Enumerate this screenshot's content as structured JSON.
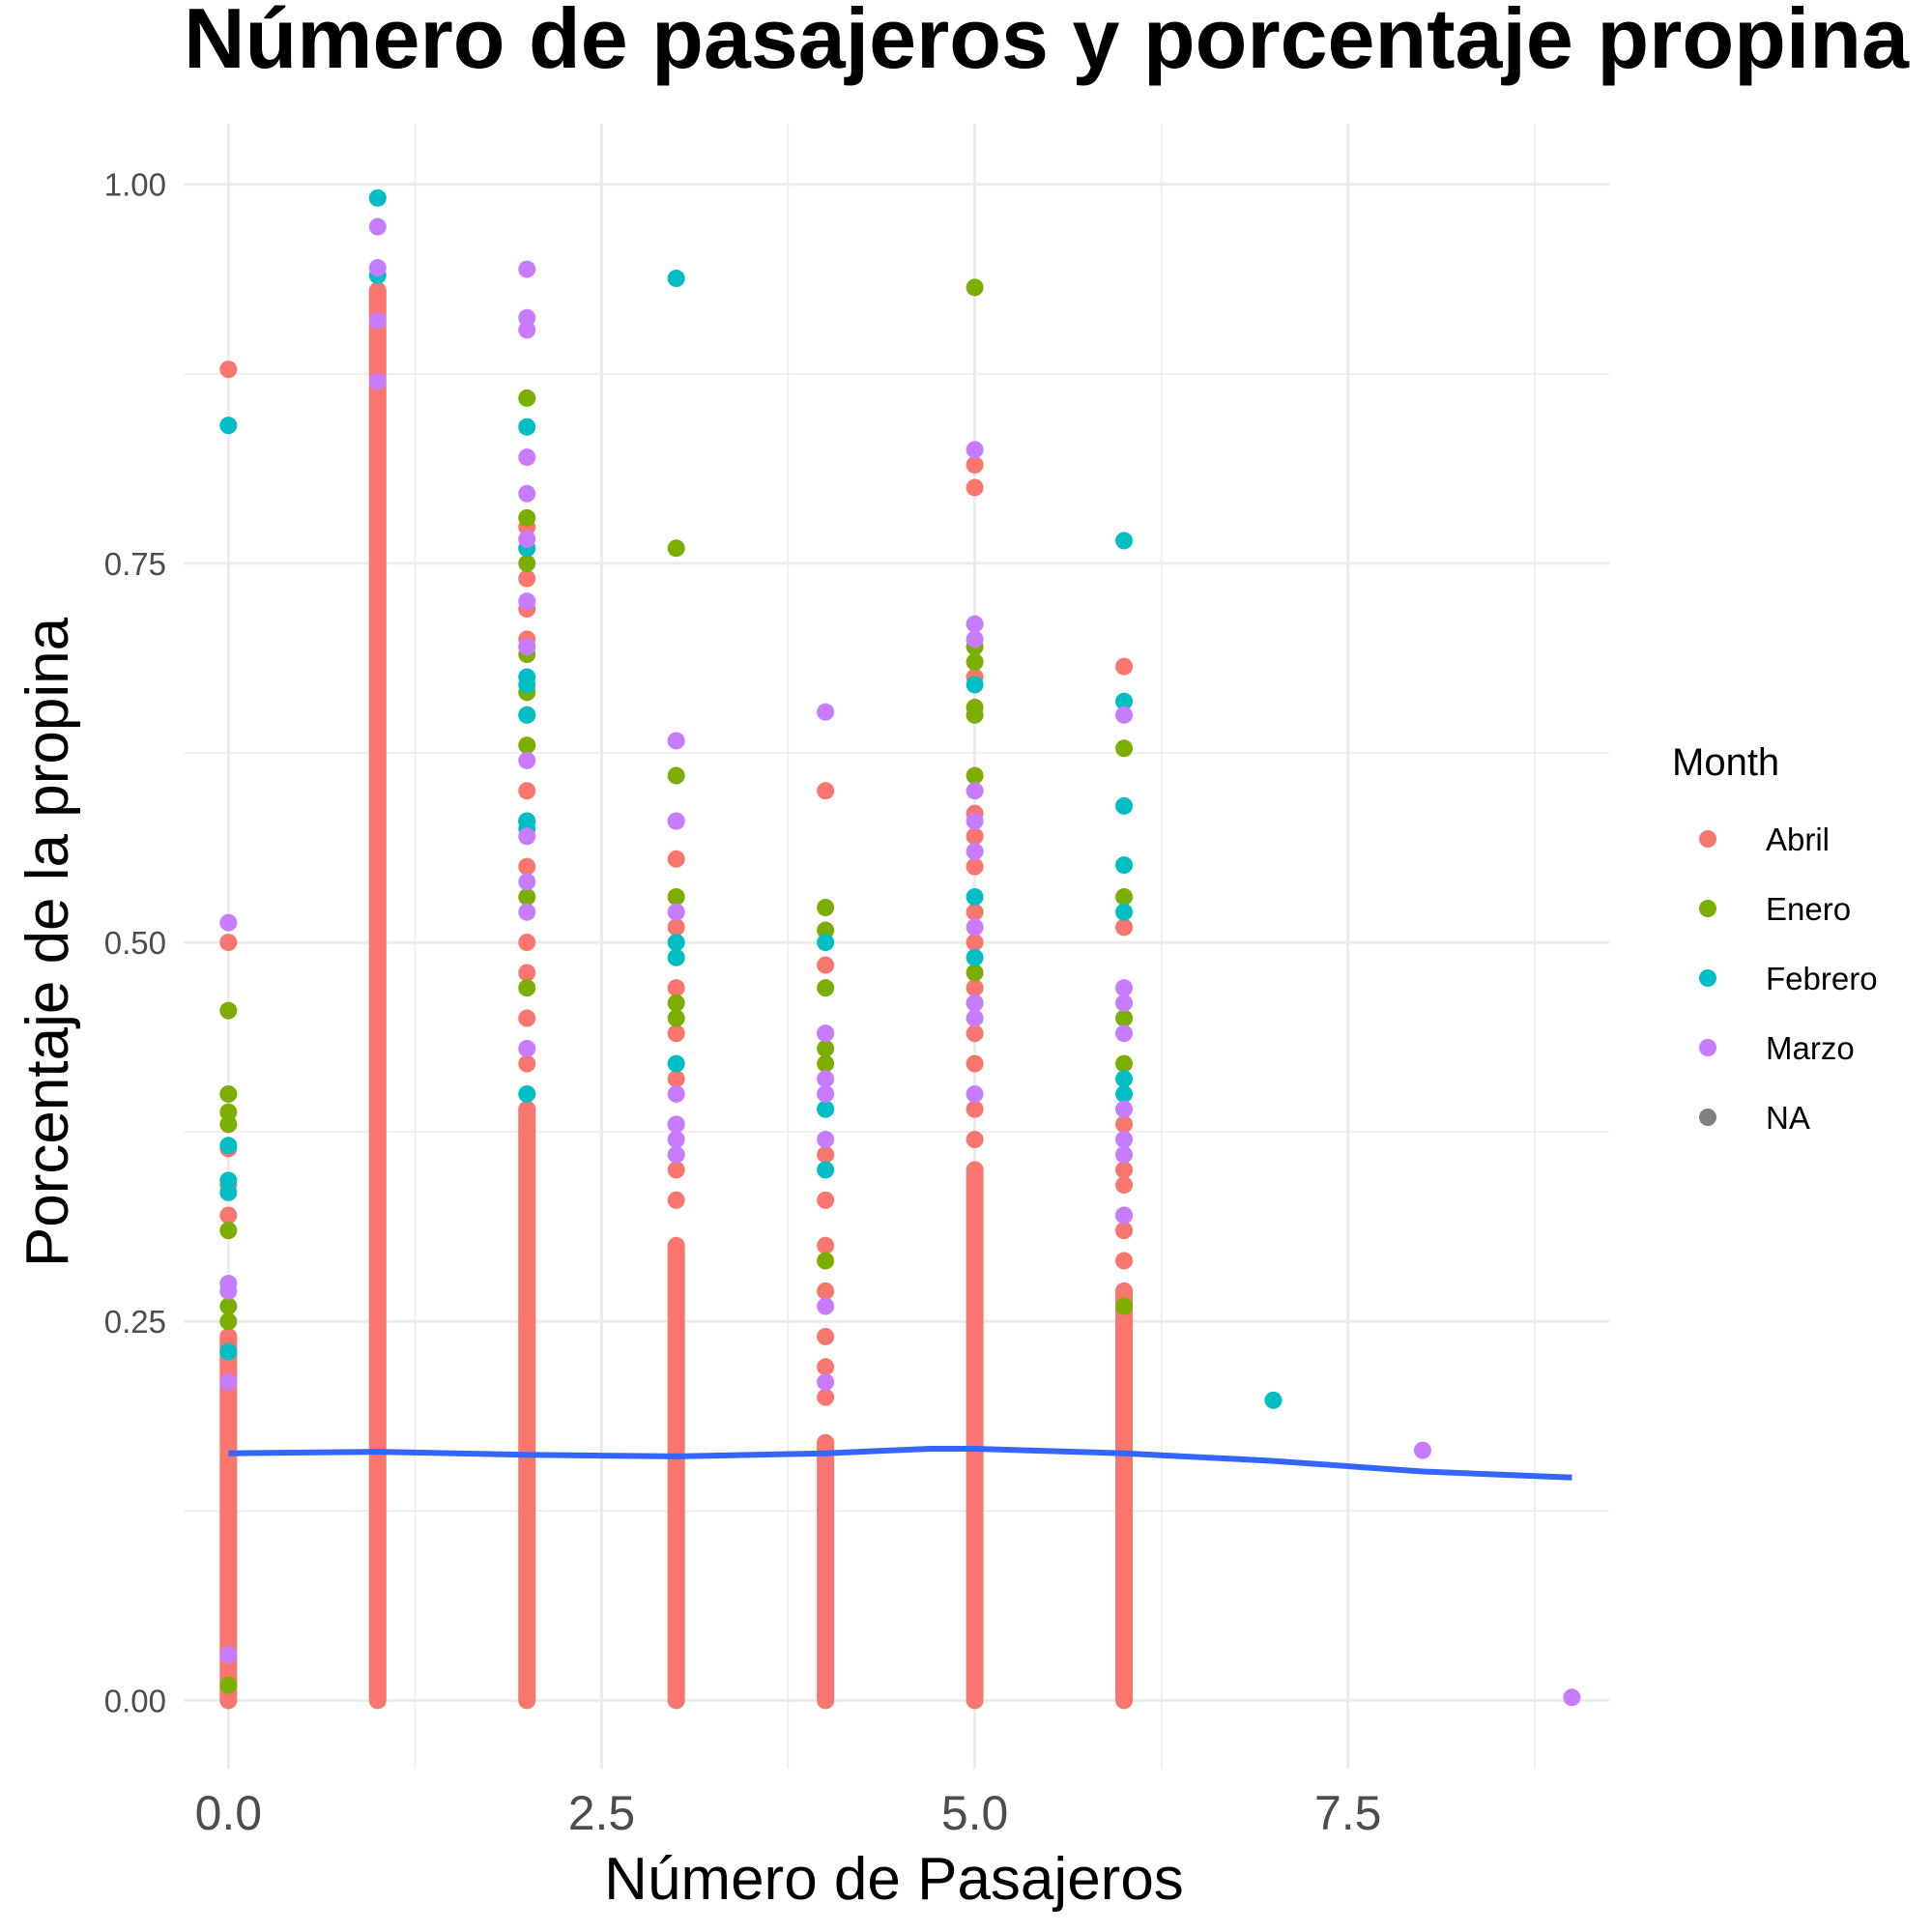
{
  "chart_data": {
    "type": "scatter",
    "title": "Número de pasajeros y porcentaje propina",
    "xlabel": "Número de Pasajeros",
    "ylabel": "Porcentaje de la propina",
    "xlim": [
      -0.3,
      9.25
    ],
    "ylim": [
      -0.045,
      1.04
    ],
    "x_ticks": [
      "0.0",
      "2.5",
      "5.0",
      "7.5"
    ],
    "x_tick_values": [
      0,
      2.5,
      5,
      7.5
    ],
    "y_ticks": [
      "0.00",
      "0.25",
      "0.50",
      "0.75",
      "1.00"
    ],
    "y_tick_values": [
      0,
      0.25,
      0.5,
      0.75,
      1.0
    ],
    "grid": true,
    "legend": {
      "title": "Month",
      "position": "right",
      "entries": [
        {
          "label": "Abril",
          "color": "#F8766D"
        },
        {
          "label": "Enero",
          "color": "#7CAE00"
        },
        {
          "label": "Febrero",
          "color": "#00BFC4"
        },
        {
          "label": "Marzo",
          "color": "#C77CFF"
        },
        {
          "label": "NA",
          "color": "#7F7F7F"
        }
      ]
    },
    "bands": [
      {
        "x": 0,
        "y_min": 0,
        "y_max": 0.24,
        "color": "#F8766D"
      },
      {
        "x": 1,
        "y_min": 0,
        "y_max": 0.93,
        "color": "#F8766D"
      },
      {
        "x": 2,
        "y_min": 0,
        "y_max": 0.39,
        "color": "#F8766D"
      },
      {
        "x": 3,
        "y_min": 0,
        "y_max": 0.3,
        "color": "#F8766D"
      },
      {
        "x": 4,
        "y_min": 0,
        "y_max": 0.17,
        "color": "#F8766D"
      },
      {
        "x": 5,
        "y_min": 0,
        "y_max": 0.35,
        "color": "#F8766D"
      },
      {
        "x": 6,
        "y_min": 0,
        "y_max": 0.27,
        "color": "#F8766D"
      }
    ],
    "series": [
      {
        "name": "Abril",
        "color": "#F8766D",
        "points": [
          [
            0,
            0.878
          ],
          [
            0,
            0.5
          ],
          [
            0,
            0.364
          ],
          [
            0,
            0.34
          ],
          [
            0,
            0.32
          ],
          [
            2,
            0.774
          ],
          [
            2,
            0.76
          ],
          [
            2,
            0.74
          ],
          [
            2,
            0.72
          ],
          [
            2,
            0.7
          ],
          [
            2,
            0.65
          ],
          [
            2,
            0.6
          ],
          [
            2,
            0.58
          ],
          [
            2,
            0.55
          ],
          [
            2,
            0.5
          ],
          [
            2,
            0.48
          ],
          [
            2,
            0.45
          ],
          [
            2,
            0.42
          ],
          [
            3,
            0.58
          ],
          [
            3,
            0.555
          ],
          [
            3,
            0.51
          ],
          [
            3,
            0.47
          ],
          [
            3,
            0.44
          ],
          [
            3,
            0.41
          ],
          [
            3,
            0.38
          ],
          [
            3,
            0.35
          ],
          [
            3,
            0.33
          ],
          [
            4,
            0.6
          ],
          [
            4,
            0.485
          ],
          [
            4,
            0.44
          ],
          [
            4,
            0.36
          ],
          [
            4,
            0.33
          ],
          [
            4,
            0.3
          ],
          [
            4,
            0.27
          ],
          [
            4,
            0.24
          ],
          [
            4,
            0.22
          ],
          [
            4,
            0.2
          ],
          [
            5,
            0.815
          ],
          [
            5,
            0.8
          ],
          [
            5,
            0.675
          ],
          [
            5,
            0.585
          ],
          [
            5,
            0.57
          ],
          [
            5,
            0.55
          ],
          [
            5,
            0.52
          ],
          [
            5,
            0.5
          ],
          [
            5,
            0.47
          ],
          [
            5,
            0.44
          ],
          [
            5,
            0.42
          ],
          [
            5,
            0.39
          ],
          [
            5,
            0.37
          ],
          [
            6,
            0.682
          ],
          [
            6,
            0.51
          ],
          [
            6,
            0.38
          ],
          [
            6,
            0.35
          ],
          [
            6,
            0.34
          ],
          [
            6,
            0.32
          ],
          [
            6,
            0.31
          ],
          [
            6,
            0.29
          ]
        ]
      },
      {
        "name": "Enero",
        "color": "#7CAE00",
        "points": [
          [
            0,
            0.455
          ],
          [
            0,
            0.4
          ],
          [
            0,
            0.388
          ],
          [
            0,
            0.38
          ],
          [
            0,
            0.31
          ],
          [
            0,
            0.26
          ],
          [
            0,
            0.25
          ],
          [
            0,
            0.01
          ],
          [
            2,
            0.859
          ],
          [
            2,
            0.78
          ],
          [
            2,
            0.75
          ],
          [
            2,
            0.69
          ],
          [
            2,
            0.665
          ],
          [
            2,
            0.63
          ],
          [
            2,
            0.58
          ],
          [
            2,
            0.53
          ],
          [
            2,
            0.47
          ],
          [
            3,
            0.76
          ],
          [
            3,
            0.61
          ],
          [
            3,
            0.53
          ],
          [
            3,
            0.46
          ],
          [
            3,
            0.45
          ],
          [
            4,
            0.523
          ],
          [
            4,
            0.508
          ],
          [
            4,
            0.47
          ],
          [
            4,
            0.43
          ],
          [
            4,
            0.42
          ],
          [
            4,
            0.39
          ],
          [
            4,
            0.29
          ],
          [
            5,
            0.932
          ],
          [
            5,
            0.695
          ],
          [
            5,
            0.685
          ],
          [
            5,
            0.655
          ],
          [
            5,
            0.65
          ],
          [
            5,
            0.61
          ],
          [
            5,
            0.48
          ],
          [
            6,
            0.628
          ],
          [
            6,
            0.53
          ],
          [
            6,
            0.45
          ],
          [
            6,
            0.42
          ],
          [
            6,
            0.26
          ]
        ]
      },
      {
        "name": "Febrero",
        "color": "#00BFC4",
        "points": [
          [
            0,
            0.841
          ],
          [
            0,
            0.366
          ],
          [
            0,
            0.343
          ],
          [
            0,
            0.335
          ],
          [
            0,
            0.23
          ],
          [
            1,
            0.991
          ],
          [
            1,
            0.94
          ],
          [
            2,
            0.84
          ],
          [
            2,
            0.76
          ],
          [
            2,
            0.675
          ],
          [
            2,
            0.67
          ],
          [
            2,
            0.65
          ],
          [
            2,
            0.58
          ],
          [
            2,
            0.575
          ],
          [
            2,
            0.4
          ],
          [
            3,
            0.938
          ],
          [
            3,
            0.5
          ],
          [
            3,
            0.49
          ],
          [
            3,
            0.42
          ],
          [
            4,
            0.5
          ],
          [
            4,
            0.39
          ],
          [
            4,
            0.35
          ],
          [
            5,
            0.67
          ],
          [
            5,
            0.53
          ],
          [
            5,
            0.49
          ],
          [
            5,
            0.46
          ],
          [
            6,
            0.765
          ],
          [
            6,
            0.659
          ],
          [
            6,
            0.59
          ],
          [
            6,
            0.551
          ],
          [
            6,
            0.52
          ],
          [
            6,
            0.41
          ],
          [
            6,
            0.4
          ],
          [
            7,
            0.198
          ]
        ]
      },
      {
        "name": "Marzo",
        "color": "#C77CFF",
        "points": [
          [
            0,
            0.513
          ],
          [
            0,
            0.275
          ],
          [
            0,
            0.27
          ],
          [
            0,
            0.21
          ],
          [
            0,
            0.03
          ],
          [
            1,
            0.972
          ],
          [
            1,
            0.945
          ],
          [
            1,
            0.91
          ],
          [
            1,
            0.87
          ],
          [
            2,
            0.944
          ],
          [
            2,
            0.912
          ],
          [
            2,
            0.904
          ],
          [
            2,
            0.82
          ],
          [
            2,
            0.796
          ],
          [
            2,
            0.766
          ],
          [
            2,
            0.725
          ],
          [
            2,
            0.695
          ],
          [
            2,
            0.62
          ],
          [
            2,
            0.57
          ],
          [
            2,
            0.54
          ],
          [
            2,
            0.52
          ],
          [
            2,
            0.43
          ],
          [
            3,
            0.633
          ],
          [
            3,
            0.58
          ],
          [
            3,
            0.52
          ],
          [
            3,
            0.4
          ],
          [
            3,
            0.38
          ],
          [
            3,
            0.37
          ],
          [
            3,
            0.36
          ],
          [
            4,
            0.652
          ],
          [
            4,
            0.44
          ],
          [
            4,
            0.41
          ],
          [
            4,
            0.4
          ],
          [
            4,
            0.37
          ],
          [
            4,
            0.26
          ],
          [
            4,
            0.21
          ],
          [
            5,
            0.825
          ],
          [
            5,
            0.71
          ],
          [
            5,
            0.7
          ],
          [
            5,
            0.6
          ],
          [
            5,
            0.58
          ],
          [
            5,
            0.56
          ],
          [
            5,
            0.51
          ],
          [
            5,
            0.46
          ],
          [
            5,
            0.45
          ],
          [
            5,
            0.4
          ],
          [
            6,
            0.65
          ],
          [
            6,
            0.47
          ],
          [
            6,
            0.46
          ],
          [
            6,
            0.44
          ],
          [
            6,
            0.39
          ],
          [
            6,
            0.37
          ],
          [
            6,
            0.36
          ],
          [
            6,
            0.32
          ],
          [
            8,
            0.165
          ],
          [
            9,
            0.002
          ]
        ]
      }
    ],
    "trend_line": {
      "color": "#3366FF",
      "points": [
        [
          0,
          0.163
        ],
        [
          1,
          0.164
        ],
        [
          2,
          0.162
        ],
        [
          3,
          0.161
        ],
        [
          4,
          0.163
        ],
        [
          4.7,
          0.166
        ],
        [
          5,
          0.166
        ],
        [
          6,
          0.163
        ],
        [
          7,
          0.158
        ],
        [
          8,
          0.151
        ],
        [
          9,
          0.147
        ]
      ]
    }
  }
}
